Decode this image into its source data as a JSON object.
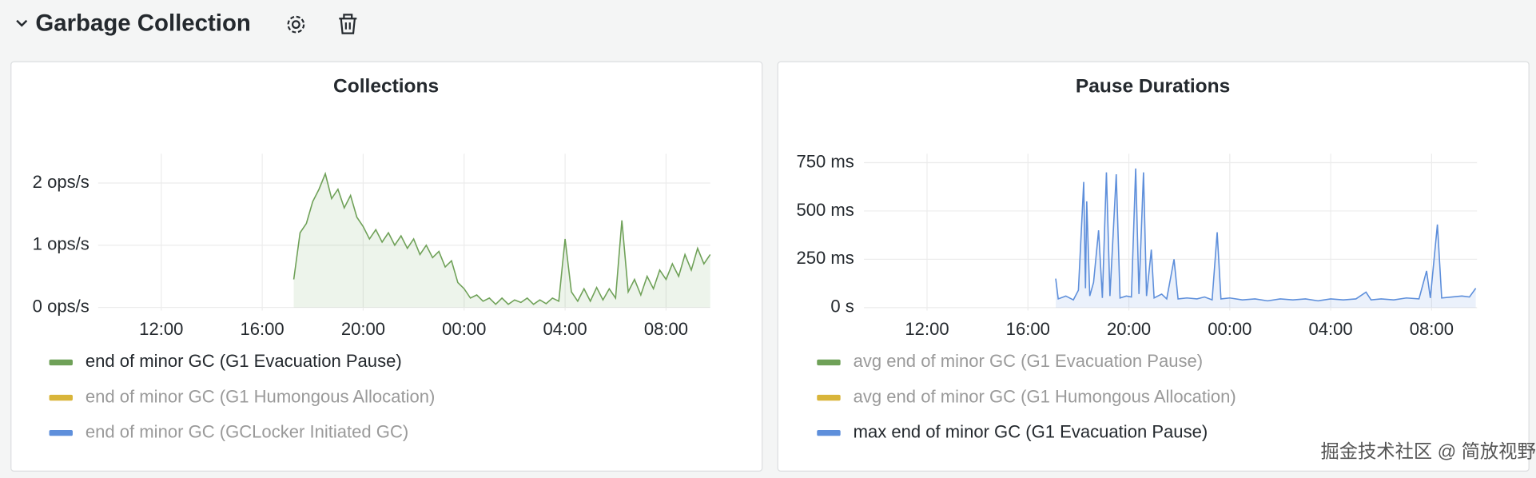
{
  "header": {
    "title": "Garbage Collection"
  },
  "watermark": "掘金技术社区 @ 简放视野",
  "chart_data": [
    {
      "type": "line",
      "title": "Collections",
      "grid": true,
      "xlim": [
        9.5,
        33.75
      ],
      "xticks": [
        {
          "value": 12,
          "label": "12:00"
        },
        {
          "value": 16,
          "label": "16:00"
        },
        {
          "value": 20,
          "label": "20:00"
        },
        {
          "value": 24,
          "label": "00:00"
        },
        {
          "value": 28,
          "label": "04:00"
        },
        {
          "value": 32,
          "label": "08:00"
        }
      ],
      "ylim": [
        -0.05,
        2.47
      ],
      "yticks": [
        {
          "value": 0,
          "label": "0 ops/s"
        },
        {
          "value": 1,
          "label": "1 ops/s"
        },
        {
          "value": 2,
          "label": "2 ops/s"
        }
      ],
      "x": [
        17.25,
        17.5,
        17.75,
        18,
        18.25,
        18.5,
        18.75,
        19,
        19.25,
        19.5,
        19.75,
        20,
        20.25,
        20.5,
        20.75,
        21,
        21.25,
        21.5,
        21.75,
        22,
        22.25,
        22.5,
        22.75,
        23,
        23.25,
        23.5,
        23.75,
        24,
        24.25,
        24.5,
        24.75,
        25,
        25.25,
        25.5,
        25.75,
        26,
        26.25,
        26.5,
        26.75,
        27,
        27.25,
        27.5,
        27.75,
        28,
        28.25,
        28.5,
        28.75,
        29,
        29.25,
        29.5,
        29.75,
        30,
        30.25,
        30.5,
        30.75,
        31,
        31.25,
        31.5,
        31.75,
        32,
        32.25,
        32.5,
        32.75,
        33,
        33.25,
        33.5,
        33.75
      ],
      "series": [
        {
          "name": "end of minor GC (G1 Evacuation Pause)",
          "color": "#6fa158",
          "hidden": false,
          "values": [
            0.45,
            1.2,
            1.35,
            1.7,
            1.9,
            2.15,
            1.75,
            1.9,
            1.6,
            1.8,
            1.45,
            1.3,
            1.1,
            1.25,
            1.05,
            1.2,
            1.0,
            1.15,
            0.95,
            1.1,
            0.85,
            1.0,
            0.8,
            0.9,
            0.65,
            0.75,
            0.4,
            0.3,
            0.15,
            0.2,
            0.1,
            0.15,
            0.05,
            0.15,
            0.05,
            0.12,
            0.08,
            0.15,
            0.05,
            0.12,
            0.06,
            0.15,
            0.1,
            1.1,
            0.25,
            0.1,
            0.3,
            0.1,
            0.32,
            0.12,
            0.3,
            0.15,
            1.4,
            0.25,
            0.45,
            0.2,
            0.5,
            0.3,
            0.6,
            0.45,
            0.7,
            0.5,
            0.85,
            0.6,
            0.95,
            0.7,
            0.85
          ]
        },
        {
          "name": "end of minor GC (G1 Humongous Allocation)",
          "color": "#d9b53a",
          "hidden": true
        },
        {
          "name": "end of minor GC (GCLocker Initiated GC)",
          "color": "#5e8fdb",
          "hidden": true
        }
      ]
    },
    {
      "type": "line",
      "title": "Pause Durations",
      "grid": true,
      "xlim": [
        9.5,
        33.8
      ],
      "xticks": [
        {
          "value": 12,
          "label": "12:00"
        },
        {
          "value": 16,
          "label": "16:00"
        },
        {
          "value": 20,
          "label": "20:00"
        },
        {
          "value": 24,
          "label": "00:00"
        },
        {
          "value": 28,
          "label": "04:00"
        },
        {
          "value": 32,
          "label": "08:00"
        }
      ],
      "ylim": [
        -15,
        796
      ],
      "yticks": [
        {
          "value": 0,
          "label": "0 s"
        },
        {
          "value": 250,
          "label": "250 ms"
        },
        {
          "value": 500,
          "label": "500 ms"
        },
        {
          "value": 750,
          "label": "750 ms"
        }
      ],
      "x": [
        17.1,
        17.2,
        17.5,
        17.8,
        18.0,
        18.21,
        18.28,
        18.33,
        18.45,
        18.6,
        18.8,
        18.95,
        19.11,
        19.25,
        19.5,
        19.65,
        19.9,
        20.1,
        20.27,
        20.4,
        20.58,
        20.7,
        20.89,
        21.0,
        21.3,
        21.5,
        21.79,
        21.95,
        22.3,
        22.7,
        23.0,
        23.3,
        23.5,
        23.65,
        24.0,
        24.5,
        25.0,
        25.5,
        26.0,
        26.5,
        27.0,
        27.5,
        28.0,
        28.5,
        29.0,
        29.4,
        29.6,
        30.0,
        30.5,
        31.0,
        31.5,
        31.8,
        31.95,
        32.23,
        32.4,
        32.8,
        33.2,
        33.5,
        33.75
      ],
      "series": [
        {
          "name": "avg end of minor GC (G1 Evacuation Pause)",
          "color": "#6fa158",
          "hidden": true
        },
        {
          "name": "avg end of minor GC (G1 Humongous Allocation)",
          "color": "#d9b53a",
          "hidden": true
        },
        {
          "name": "max end of minor GC (G1 Evacuation Pause)",
          "color": "#5e8fdb",
          "hidden": false,
          "values": [
            150,
            45,
            60,
            40,
            90,
            650,
            100,
            550,
            60,
            130,
            400,
            50,
            700,
            60,
            690,
            50,
            60,
            55,
            720,
            70,
            700,
            60,
            300,
            50,
            70,
            45,
            250,
            45,
            50,
            45,
            55,
            40,
            390,
            45,
            50,
            40,
            45,
            35,
            45,
            40,
            45,
            35,
            45,
            40,
            45,
            80,
            40,
            45,
            40,
            50,
            45,
            190,
            50,
            430,
            50,
            55,
            60,
            55,
            100
          ]
        }
      ]
    }
  ]
}
